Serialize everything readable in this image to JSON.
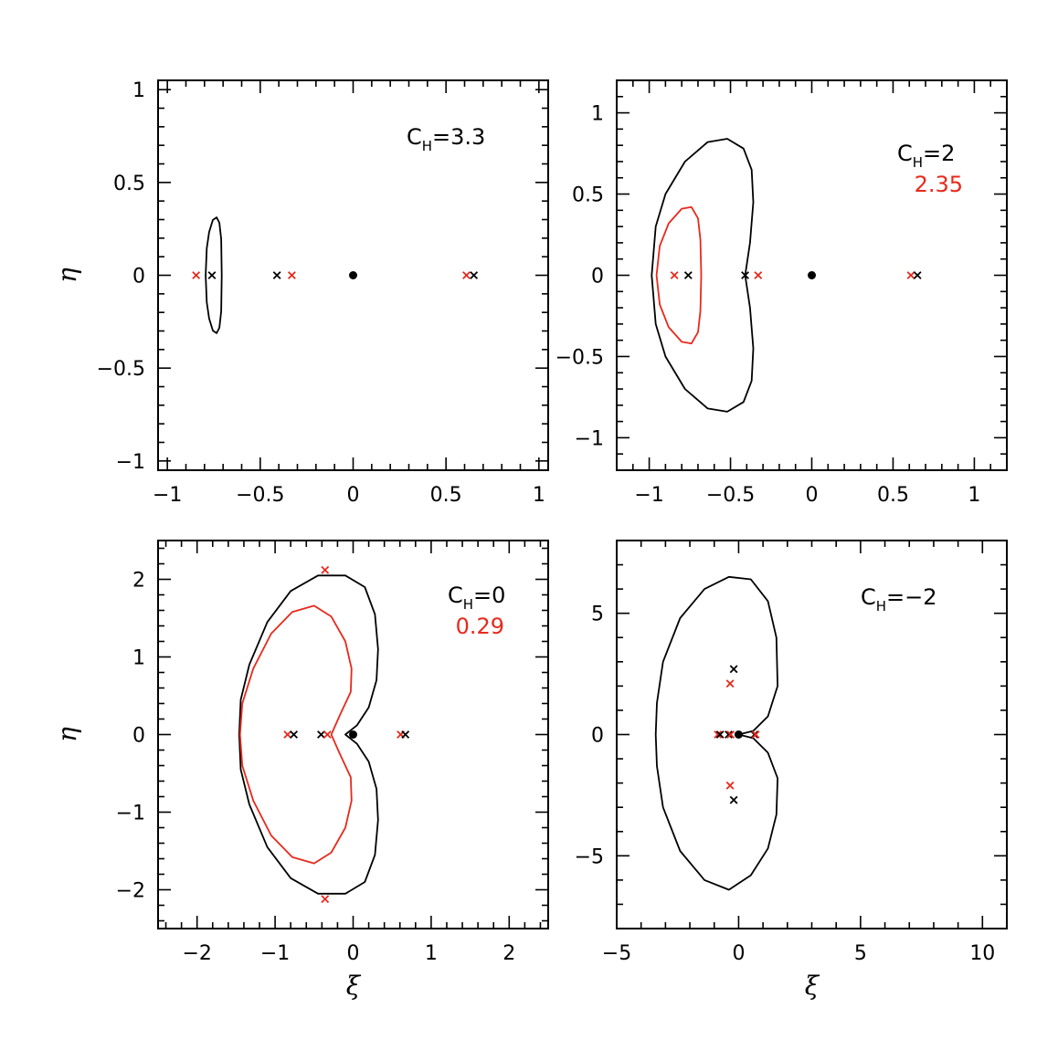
{
  "colors": {
    "primary": "#000000",
    "secondary": "#e8291c"
  },
  "chart_data": [
    {
      "type": "line",
      "panel": "top-left",
      "annotation": {
        "base": "C",
        "sub": "H",
        "eq": "=3.3"
      },
      "annotation2": "",
      "xlim": [
        -1.05,
        1.05
      ],
      "ylim": [
        -1.05,
        1.05
      ],
      "xticks": [
        {
          "v": -1,
          "label": "−1"
        },
        {
          "v": -0.5,
          "label": "−0.5"
        },
        {
          "v": 0,
          "label": "0"
        },
        {
          "v": 0.5,
          "label": "0.5"
        },
        {
          "v": 1,
          "label": "1"
        }
      ],
      "yticks": [
        {
          "v": -1,
          "label": "−1"
        },
        {
          "v": -0.5,
          "label": "−0.5"
        },
        {
          "v": 0,
          "label": "0"
        },
        {
          "v": 0.5,
          "label": "0.5"
        },
        {
          "v": 1,
          "label": "1"
        }
      ],
      "xminor": 0.1,
      "yminor": 0.1,
      "xlabel": "",
      "ylabel": "η",
      "series": [
        {
          "color": "primary",
          "points": [
            [
              -0.707,
              0.0
            ],
            [
              -0.71,
              0.195
            ],
            [
              -0.72,
              0.283
            ],
            [
              -0.735,
              0.312
            ],
            [
              -0.755,
              0.298
            ],
            [
              -0.775,
              0.233
            ],
            [
              -0.788,
              0.145
            ],
            [
              -0.794,
              0.0
            ],
            [
              -0.788,
              -0.145
            ],
            [
              -0.775,
              -0.233
            ],
            [
              -0.755,
              -0.298
            ],
            [
              -0.735,
              -0.312
            ],
            [
              -0.72,
              -0.283
            ],
            [
              -0.71,
              -0.195
            ],
            [
              -0.707,
              0.0
            ]
          ]
        }
      ],
      "markers": [
        {
          "x": -0.845,
          "y": 0,
          "color": "secondary",
          "shape": "x"
        },
        {
          "x": -0.76,
          "y": 0,
          "color": "primary",
          "shape": "x"
        },
        {
          "x": -0.41,
          "y": 0,
          "color": "primary",
          "shape": "x"
        },
        {
          "x": -0.33,
          "y": 0,
          "color": "secondary",
          "shape": "x"
        },
        {
          "x": 0,
          "y": 0,
          "color": "primary",
          "shape": "dot"
        },
        {
          "x": 0.61,
          "y": 0,
          "color": "secondary",
          "shape": "x"
        },
        {
          "x": 0.65,
          "y": 0,
          "color": "primary",
          "shape": "x"
        }
      ]
    },
    {
      "type": "line",
      "panel": "top-right",
      "annotation": {
        "base": "C",
        "sub": "H",
        "eq": "=2"
      },
      "annotation2": "2.35",
      "xlim": [
        -1.2,
        1.2
      ],
      "ylim": [
        -1.2,
        1.2
      ],
      "xticks": [
        {
          "v": -1,
          "label": "−1"
        },
        {
          "v": -0.5,
          "label": "−0.5"
        },
        {
          "v": 0,
          "label": "0"
        },
        {
          "v": 0.5,
          "label": "0.5"
        },
        {
          "v": 1,
          "label": "1"
        }
      ],
      "yticks": [
        {
          "v": -1,
          "label": "−1"
        },
        {
          "v": -0.5,
          "label": "−0.5"
        },
        {
          "v": 0,
          "label": "0"
        },
        {
          "v": 0.5,
          "label": "0.5"
        },
        {
          "v": 1,
          "label": "1"
        }
      ],
      "xminor": 0.1,
      "yminor": 0.1,
      "xlabel": "",
      "ylabel": "",
      "series": [
        {
          "color": "primary",
          "points": [
            [
              -0.41,
              0.0
            ],
            [
              -0.38,
              0.2
            ],
            [
              -0.36,
              0.45
            ],
            [
              -0.37,
              0.65
            ],
            [
              -0.42,
              0.78
            ],
            [
              -0.52,
              0.84
            ],
            [
              -0.64,
              0.82
            ],
            [
              -0.78,
              0.7
            ],
            [
              -0.9,
              0.5
            ],
            [
              -0.96,
              0.3
            ],
            [
              -0.985,
              0.0
            ],
            [
              -0.96,
              -0.3
            ],
            [
              -0.9,
              -0.5
            ],
            [
              -0.78,
              -0.7
            ],
            [
              -0.64,
              -0.82
            ],
            [
              -0.52,
              -0.84
            ],
            [
              -0.42,
              -0.78
            ],
            [
              -0.37,
              -0.65
            ],
            [
              -0.36,
              -0.45
            ],
            [
              -0.38,
              -0.2
            ],
            [
              -0.41,
              0.0
            ]
          ]
        },
        {
          "color": "secondary",
          "points": [
            [
              -0.68,
              0.0
            ],
            [
              -0.685,
              0.22
            ],
            [
              -0.7,
              0.35
            ],
            [
              -0.74,
              0.42
            ],
            [
              -0.8,
              0.41
            ],
            [
              -0.88,
              0.32
            ],
            [
              -0.935,
              0.18
            ],
            [
              -0.955,
              0.0
            ],
            [
              -0.935,
              -0.18
            ],
            [
              -0.88,
              -0.32
            ],
            [
              -0.8,
              -0.41
            ],
            [
              -0.74,
              -0.42
            ],
            [
              -0.7,
              -0.35
            ],
            [
              -0.685,
              -0.22
            ],
            [
              -0.68,
              0.0
            ]
          ]
        }
      ],
      "markers": [
        {
          "x": -0.845,
          "y": 0,
          "color": "secondary",
          "shape": "x"
        },
        {
          "x": -0.76,
          "y": 0,
          "color": "primary",
          "shape": "x"
        },
        {
          "x": -0.41,
          "y": 0,
          "color": "primary",
          "shape": "x"
        },
        {
          "x": -0.33,
          "y": 0,
          "color": "secondary",
          "shape": "x"
        },
        {
          "x": 0,
          "y": 0,
          "color": "primary",
          "shape": "dot"
        },
        {
          "x": 0.61,
          "y": 0,
          "color": "secondary",
          "shape": "x"
        },
        {
          "x": 0.65,
          "y": 0,
          "color": "primary",
          "shape": "x"
        }
      ]
    },
    {
      "type": "line",
      "panel": "bottom-left",
      "annotation": {
        "base": "C",
        "sub": "H",
        "eq": "=0"
      },
      "annotation2": "0.29",
      "xlim": [
        -2.5,
        2.5
      ],
      "ylim": [
        -2.5,
        2.5
      ],
      "xticks": [
        {
          "v": -2,
          "label": "−2"
        },
        {
          "v": -1,
          "label": "−1"
        },
        {
          "v": 0,
          "label": "0"
        },
        {
          "v": 1,
          "label": "1"
        },
        {
          "v": 2,
          "label": "2"
        }
      ],
      "yticks": [
        {
          "v": -2,
          "label": "−2"
        },
        {
          "v": -1,
          "label": "−1"
        },
        {
          "v": 0,
          "label": "0"
        },
        {
          "v": 1,
          "label": "1"
        },
        {
          "v": 2,
          "label": "2"
        }
      ],
      "xminor": 0.2,
      "yminor": 0.2,
      "xlabel": "ξ",
      "ylabel": "η",
      "series": [
        {
          "color": "primary",
          "points": [
            [
              -0.1,
              0.0
            ],
            [
              0.05,
              -0.12
            ],
            [
              0.2,
              -0.35
            ],
            [
              0.3,
              -0.7
            ],
            [
              0.32,
              -1.1
            ],
            [
              0.28,
              -1.55
            ],
            [
              0.15,
              -1.9
            ],
            [
              -0.1,
              -2.05
            ],
            [
              -0.45,
              -2.05
            ],
            [
              -0.8,
              -1.85
            ],
            [
              -1.1,
              -1.45
            ],
            [
              -1.33,
              -0.9
            ],
            [
              -1.44,
              -0.45
            ],
            [
              -1.46,
              0.0
            ],
            [
              -1.44,
              0.45
            ],
            [
              -1.33,
              0.9
            ],
            [
              -1.1,
              1.45
            ],
            [
              -0.8,
              1.85
            ],
            [
              -0.45,
              2.05
            ],
            [
              -0.1,
              2.05
            ],
            [
              0.15,
              1.9
            ],
            [
              0.28,
              1.55
            ],
            [
              0.32,
              1.1
            ],
            [
              0.3,
              0.7
            ],
            [
              0.2,
              0.35
            ],
            [
              0.05,
              0.12
            ],
            [
              -0.1,
              0.0
            ]
          ]
        },
        {
          "color": "secondary",
          "points": [
            [
              -0.28,
              0.0
            ],
            [
              -0.17,
              -0.25
            ],
            [
              -0.03,
              -0.55
            ],
            [
              -0.02,
              -0.85
            ],
            [
              -0.1,
              -1.2
            ],
            [
              -0.28,
              -1.52
            ],
            [
              -0.5,
              -1.66
            ],
            [
              -0.78,
              -1.58
            ],
            [
              -1.05,
              -1.3
            ],
            [
              -1.28,
              -0.85
            ],
            [
              -1.42,
              -0.4
            ],
            [
              -1.45,
              0.0
            ],
            [
              -1.42,
              0.4
            ],
            [
              -1.28,
              0.85
            ],
            [
              -1.05,
              1.3
            ],
            [
              -0.78,
              1.58
            ],
            [
              -0.5,
              1.66
            ],
            [
              -0.28,
              1.52
            ],
            [
              -0.1,
              1.2
            ],
            [
              -0.02,
              0.85
            ],
            [
              -0.03,
              0.55
            ],
            [
              -0.17,
              0.25
            ],
            [
              -0.28,
              0.0
            ]
          ]
        }
      ],
      "markers": [
        {
          "x": -0.84,
          "y": 0,
          "color": "secondary",
          "shape": "x"
        },
        {
          "x": -0.76,
          "y": 0,
          "color": "primary",
          "shape": "x"
        },
        {
          "x": -0.41,
          "y": 0,
          "color": "primary",
          "shape": "x"
        },
        {
          "x": -0.33,
          "y": 0,
          "color": "secondary",
          "shape": "x"
        },
        {
          "x": 0,
          "y": 0,
          "color": "primary",
          "shape": "dot"
        },
        {
          "x": 0.61,
          "y": 0,
          "color": "secondary",
          "shape": "x"
        },
        {
          "x": 0.67,
          "y": 0,
          "color": "primary",
          "shape": "x"
        },
        {
          "x": -0.36,
          "y": 2.12,
          "color": "secondary",
          "shape": "x"
        },
        {
          "x": -0.36,
          "y": -2.12,
          "color": "secondary",
          "shape": "x"
        }
      ]
    },
    {
      "type": "line",
      "panel": "bottom-right",
      "annotation": {
        "base": "C",
        "sub": "H",
        "eq": "=−2"
      },
      "annotation2": "",
      "xlim": [
        -5,
        11
      ],
      "ylim": [
        -8,
        8
      ],
      "xticks": [
        {
          "v": -5,
          "label": "−5"
        },
        {
          "v": 0,
          "label": "0"
        },
        {
          "v": 5,
          "label": "5"
        },
        {
          "v": 10,
          "label": "10"
        }
      ],
      "yticks": [
        {
          "v": -5,
          "label": "−5"
        },
        {
          "v": 0,
          "label": "0"
        },
        {
          "v": 5,
          "label": "5"
        }
      ],
      "xminor": 1,
      "yminor": 1,
      "xlabel": "ξ",
      "ylabel": "",
      "series": [
        {
          "color": "primary",
          "points": [
            [
              0.0,
              0.0
            ],
            [
              0.6,
              -0.15
            ],
            [
              1.2,
              -0.75
            ],
            [
              1.6,
              -1.8
            ],
            [
              1.55,
              -3.3
            ],
            [
              1.2,
              -4.7
            ],
            [
              0.5,
              -5.8
            ],
            [
              -0.4,
              -6.4
            ],
            [
              -1.4,
              -6.0
            ],
            [
              -2.4,
              -4.8
            ],
            [
              -3.1,
              -3.0
            ],
            [
              -3.35,
              -1.3
            ],
            [
              -3.4,
              0.0
            ],
            [
              -3.35,
              1.3
            ],
            [
              -3.1,
              3.0
            ],
            [
              -2.4,
              4.8
            ],
            [
              -1.4,
              6.0
            ],
            [
              -0.4,
              6.5
            ],
            [
              0.5,
              6.4
            ],
            [
              1.2,
              5.5
            ],
            [
              1.55,
              4.0
            ],
            [
              1.6,
              2.0
            ],
            [
              1.2,
              0.75
            ],
            [
              0.6,
              0.15
            ],
            [
              0.0,
              0.0
            ]
          ]
        }
      ],
      "markers": [
        {
          "x": -0.85,
          "y": 0,
          "color": "secondary",
          "shape": "x"
        },
        {
          "x": -0.76,
          "y": 0,
          "color": "primary",
          "shape": "x"
        },
        {
          "x": -0.41,
          "y": 0,
          "color": "primary",
          "shape": "x"
        },
        {
          "x": -0.33,
          "y": 0,
          "color": "secondary",
          "shape": "x"
        },
        {
          "x": 0,
          "y": 0,
          "color": "primary",
          "shape": "dot"
        },
        {
          "x": 0.65,
          "y": 0,
          "color": "primary",
          "shape": "x"
        },
        {
          "x": 0.7,
          "y": 0,
          "color": "secondary",
          "shape": "x"
        },
        {
          "x": -0.2,
          "y": 2.7,
          "color": "primary",
          "shape": "x"
        },
        {
          "x": -0.35,
          "y": 2.1,
          "color": "secondary",
          "shape": "x"
        },
        {
          "x": -0.35,
          "y": -2.1,
          "color": "secondary",
          "shape": "x"
        },
        {
          "x": -0.2,
          "y": -2.7,
          "color": "primary",
          "shape": "x"
        }
      ]
    }
  ]
}
